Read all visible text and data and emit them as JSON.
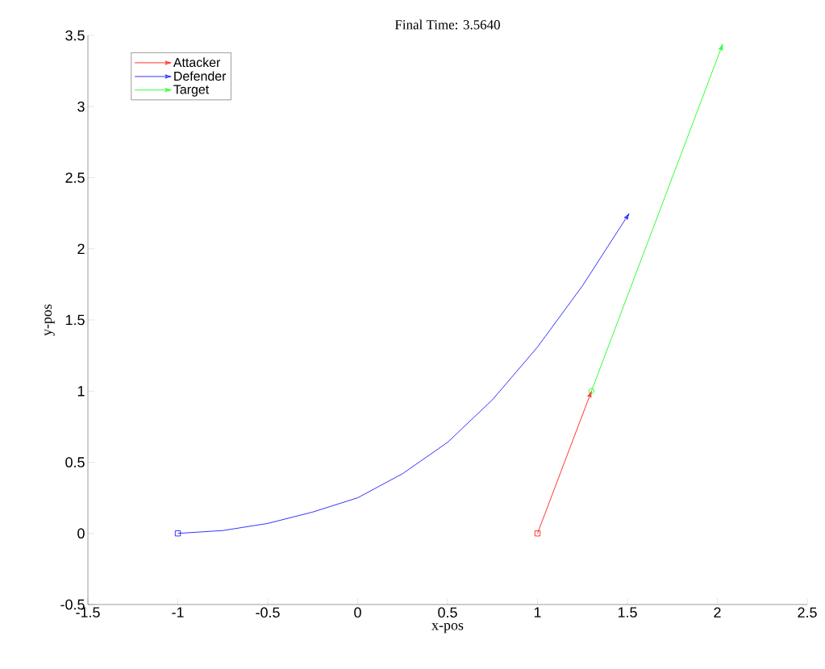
{
  "chart_data": {
    "type": "line",
    "title": "Final Time: 3.5640",
    "xlabel": "x-pos",
    "ylabel": "y-pos",
    "xlim": [
      -1.5,
      2.5
    ],
    "ylim": [
      -0.5,
      3.5
    ],
    "xticks": [
      -1.5,
      -1,
      -0.5,
      0,
      0.5,
      1,
      1.5,
      2,
      2.5
    ],
    "yticks": [
      -0.5,
      0,
      0.5,
      1,
      1.5,
      2,
      2.5,
      3,
      3.5
    ],
    "grid": false,
    "legend": "top left",
    "series": [
      {
        "name": "Attacker",
        "color": "#ff0000",
        "x": [
          1,
          1.3
        ],
        "values": [
          0,
          1
        ]
      },
      {
        "name": "Defender",
        "color": "#0000ff",
        "x": [
          -1,
          -0.75,
          -0.5,
          -0.25,
          0,
          0.25,
          0.5,
          0.75,
          1,
          1.25,
          1.51
        ],
        "values": [
          0,
          0.02,
          0.07,
          0.15,
          0.25,
          0.42,
          0.64,
          0.94,
          1.31,
          1.74,
          2.25
        ]
      },
      {
        "name": "Target",
        "color": "#00ff00",
        "x": [
          1.3,
          2.03
        ],
        "values": [
          1,
          3.44
        ]
      },
      {
        "type": "scatter",
        "marker": "square",
        "color": "#ff0000",
        "x": [
          1
        ],
        "values": [
          0
        ]
      },
      {
        "type": "scatter",
        "marker": "square",
        "color": "#0000ff",
        "x": [
          -1
        ],
        "values": [
          0
        ]
      },
      {
        "type": "scatter",
        "marker": "circle",
        "color": "#00ff00",
        "x": [
          1.3
        ],
        "values": [
          1
        ]
      }
    ]
  }
}
